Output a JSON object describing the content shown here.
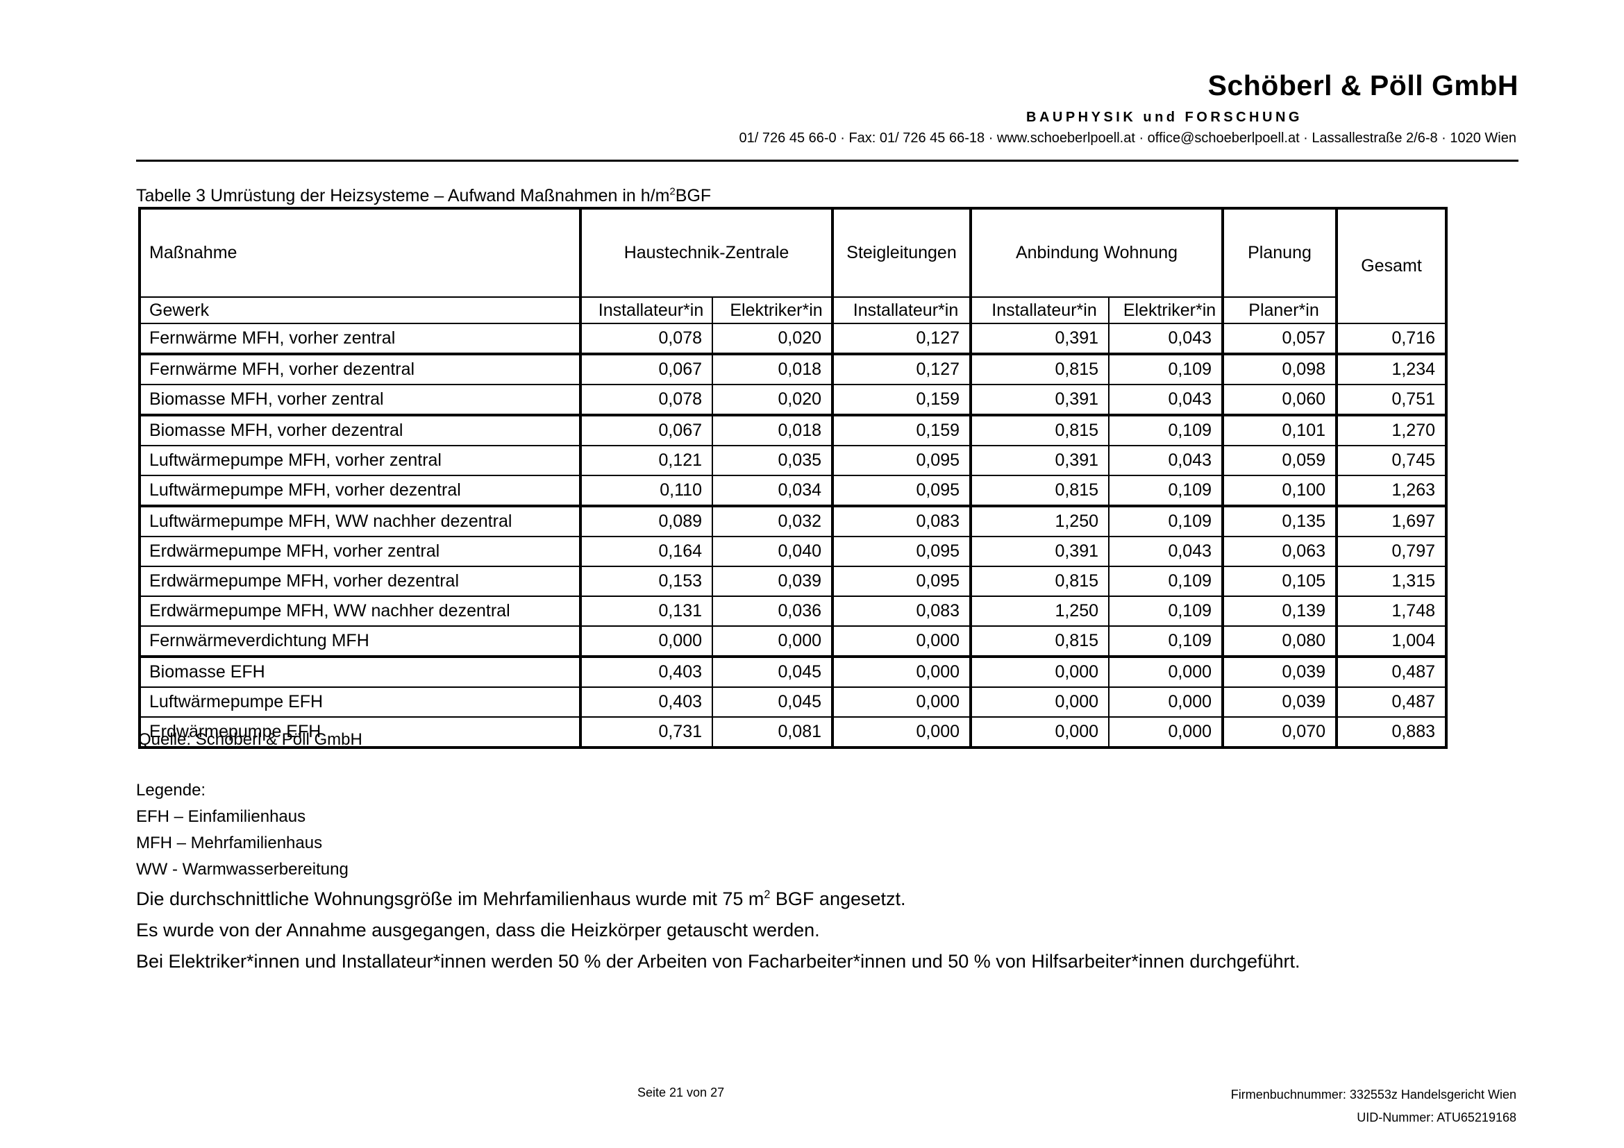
{
  "header": {
    "company": "Schöberl & Pöll GmbH",
    "division": "BAUPHYSIK und FORSCHUNG",
    "contact": "01/ 726 45 66-0 · Fax: 01/ 726 45 66-18 · www.schoeberlpoell.at · office@schoeberlpoell.at · Lassallestraße 2/6-8 · 1020 Wien"
  },
  "table": {
    "title_prefix": "Tabelle 3 Umrüstung der Heizsysteme – Aufwand Maßnahmen in h/m",
    "title_sup": "2",
    "title_suffix": "BGF",
    "measure_label": "Maßnahme",
    "gewerk_label": "Gewerk",
    "gesamt_label": "Gesamt",
    "groups": [
      {
        "label": "Haustechnik-Zentrale",
        "span": 2
      },
      {
        "label": "Steigleitungen",
        "span": 1
      },
      {
        "label": "Anbindung Wohnung",
        "span": 2
      },
      {
        "label": "Planung",
        "span": 1
      }
    ],
    "sub_headers": [
      "Installateur*in",
      "Elektriker*in",
      "Installateur*in",
      "Installateur*in",
      "Elektriker*in",
      "Planer*in"
    ],
    "rows": [
      {
        "name": "Fernwärme MFH, vorher zentral",
        "values": [
          "0,078",
          "0,020",
          "0,127",
          "0,391",
          "0,043",
          "0,057",
          "0,716"
        ],
        "thick_below": true
      },
      {
        "name": "Fernwärme MFH, vorher dezentral",
        "values": [
          "0,067",
          "0,018",
          "0,127",
          "0,815",
          "0,109",
          "0,098",
          "1,234"
        ],
        "thick_below": false
      },
      {
        "name": "Biomasse MFH, vorher zentral",
        "values": [
          "0,078",
          "0,020",
          "0,159",
          "0,391",
          "0,043",
          "0,060",
          "0,751"
        ],
        "thick_below": true
      },
      {
        "name": "Biomasse MFH, vorher dezentral",
        "values": [
          "0,067",
          "0,018",
          "0,159",
          "0,815",
          "0,109",
          "0,101",
          "1,270"
        ],
        "thick_below": false
      },
      {
        "name": "Luftwärmepumpe MFH, vorher zentral",
        "values": [
          "0,121",
          "0,035",
          "0,095",
          "0,391",
          "0,043",
          "0,059",
          "0,745"
        ],
        "thick_below": false
      },
      {
        "name": "Luftwärmepumpe MFH, vorher dezentral",
        "values": [
          "0,110",
          "0,034",
          "0,095",
          "0,815",
          "0,109",
          "0,100",
          "1,263"
        ],
        "thick_below": true
      },
      {
        "name": "Luftwärmepumpe MFH, WW nachher dezentral",
        "values": [
          "0,089",
          "0,032",
          "0,083",
          "1,250",
          "0,109",
          "0,135",
          "1,697"
        ],
        "thick_below": false
      },
      {
        "name": "Erdwärmepumpe MFH, vorher zentral",
        "values": [
          "0,164",
          "0,040",
          "0,095",
          "0,391",
          "0,043",
          "0,063",
          "0,797"
        ],
        "thick_below": false
      },
      {
        "name": "Erdwärmepumpe MFH, vorher dezentral",
        "values": [
          "0,153",
          "0,039",
          "0,095",
          "0,815",
          "0,109",
          "0,105",
          "1,315"
        ],
        "thick_below": false
      },
      {
        "name": "Erdwärmepumpe MFH, WW nachher dezentral",
        "values": [
          "0,131",
          "0,036",
          "0,083",
          "1,250",
          "0,109",
          "0,139",
          "1,748"
        ],
        "thick_below": false
      },
      {
        "name": "Fernwärmeverdichtung MFH",
        "values": [
          "0,000",
          "0,000",
          "0,000",
          "0,815",
          "0,109",
          "0,080",
          "1,004"
        ],
        "thick_below": true
      },
      {
        "name": "Biomasse EFH",
        "values": [
          "0,403",
          "0,045",
          "0,000",
          "0,000",
          "0,000",
          "0,039",
          "0,487"
        ],
        "thick_below": false
      },
      {
        "name": "Luftwärmepumpe EFH",
        "values": [
          "0,403",
          "0,045",
          "0,000",
          "0,000",
          "0,000",
          "0,039",
          "0,487"
        ],
        "thick_below": false
      },
      {
        "name": "Erdwärmepumpe EFH",
        "values": [
          "0,731",
          "0,081",
          "0,000",
          "0,000",
          "0,000",
          "0,070",
          "0,883"
        ],
        "thick_below": false
      }
    ],
    "source": "Quelle: Schöberl & Pöll GmbH"
  },
  "legend": {
    "title": "Legende:",
    "items": [
      "EFH – Einfamilienhaus",
      "MFH – Mehrfamilienhaus",
      "WW - Warmwasserbereitung"
    ]
  },
  "notes": {
    "note1_prefix": "Die durchschnittliche Wohnungsgröße im Mehrfamilienhaus wurde mit 75 m",
    "note1_sup": "2",
    "note1_suffix": " BGF angesetzt.",
    "note2": "Es wurde von der Annahme ausgegangen, dass die Heizkörper getauscht werden.",
    "note3": "Bei Elektriker*innen und Installateur*innen werden 50 % der Arbeiten von Facharbeiter*innen und 50 % von Hilfsarbeiter*innen durchgeführt."
  },
  "footer": {
    "page": "Seite 21 von 27",
    "company_register": "Firmenbuchnummer: 332553z Handelsgericht Wien",
    "vat": "UID-Nummer: ATU65219168"
  }
}
